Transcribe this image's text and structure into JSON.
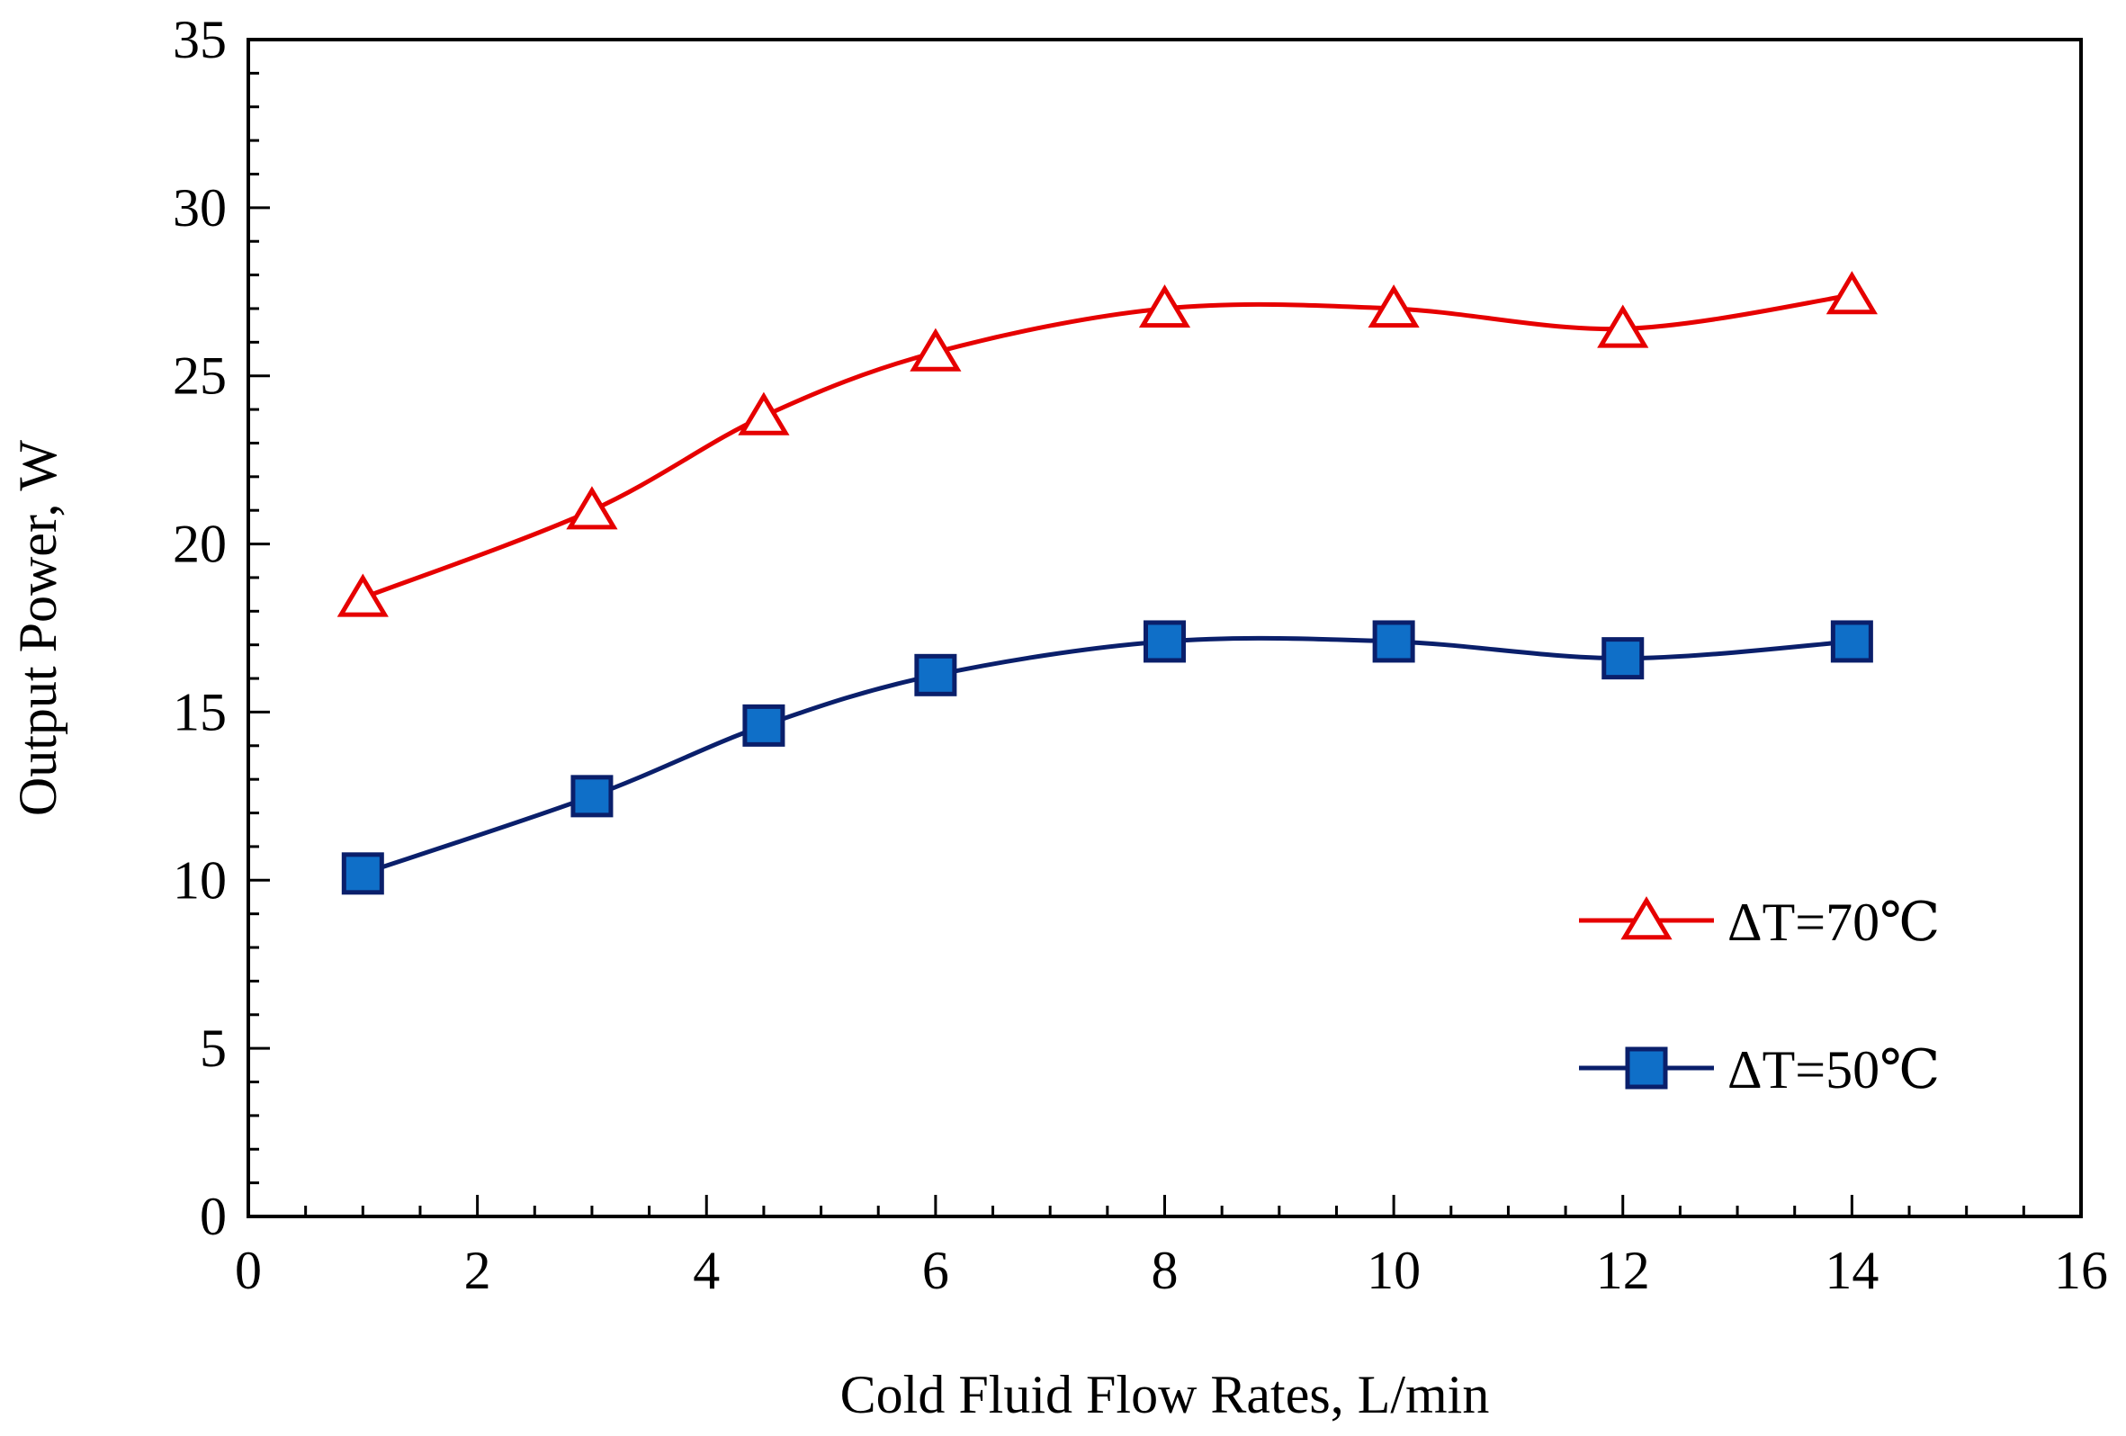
{
  "chart_data": {
    "type": "line",
    "title": "",
    "xlabel": "Cold Fluid Flow Rates, L/min",
    "ylabel": "Output Power, W",
    "xlim": [
      0,
      16
    ],
    "ylim": [
      0,
      35
    ],
    "xticks": [
      0,
      2,
      4,
      6,
      8,
      10,
      12,
      14,
      16
    ],
    "yticks": [
      0,
      5,
      10,
      15,
      20,
      25,
      30,
      35
    ],
    "x_minor_step": 0.5,
    "y_minor_step": 1,
    "grid": false,
    "legend_position": "bottom-right",
    "series": [
      {
        "name": "ΔT=70℃",
        "marker": "triangle-open",
        "color": "#e60000",
        "marker_fill": "#ffffff",
        "x": [
          1,
          3,
          4.5,
          6,
          8,
          10,
          12,
          14
        ],
        "y": [
          18.4,
          21,
          23.8,
          25.7,
          27,
          27,
          26.4,
          27.4
        ]
      },
      {
        "name": "ΔT=50℃",
        "marker": "square-filled",
        "color": "#0a1f6b",
        "marker_fill": "#0f6fc8",
        "x": [
          1,
          3,
          4.5,
          6,
          8,
          10,
          12,
          14
        ],
        "y": [
          10.2,
          12.5,
          14.6,
          16.1,
          17.1,
          17.1,
          16.6,
          17.1
        ]
      }
    ]
  }
}
